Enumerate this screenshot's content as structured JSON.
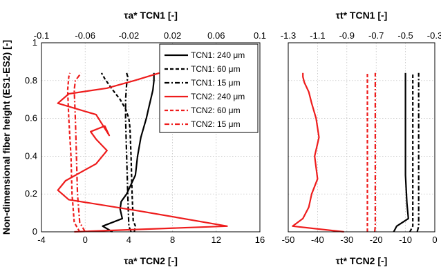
{
  "chart_data": [
    {
      "type": "line",
      "panel": "left",
      "xlabel_top": "τa* TCN1 [-]",
      "xlabel_bottom": "τa* TCN2 [-]",
      "ylabel": "Non-dimensional fiber height (ES1-ES2) [-]",
      "xlim_top": [
        -0.1,
        0.1
      ],
      "xticks_top": [
        "-0.1",
        "-0.06",
        "-0.02",
        "0.02",
        "0.06",
        "0.1"
      ],
      "xlim_bottom": [
        -4,
        16
      ],
      "xticks_bottom": [
        "-4",
        "0",
        "4",
        "8",
        "12",
        "16"
      ],
      "ylim": [
        0,
        1
      ],
      "yticks": [
        "0",
        "0.2",
        "0.4",
        "0.6",
        "0.8",
        "1"
      ],
      "grid": true,
      "legend": {
        "placement": "top-right",
        "entries": [
          {
            "label": "TCN1: 240 μm",
            "color": "#000000",
            "style": "solid"
          },
          {
            "label": "TCN1: 60 μm",
            "color": "#000000",
            "style": "dashed"
          },
          {
            "label": "TCN1: 15 μm",
            "color": "#000000",
            "style": "dashdot"
          },
          {
            "label": "TCN2: 240 μm",
            "color": "#ee1c1c",
            "style": "solid"
          },
          {
            "label": "TCN2: 60 μm",
            "color": "#ee1c1c",
            "style": "dashed"
          },
          {
            "label": "TCN2: 15 μm",
            "color": "#ee1c1c",
            "style": "dashdot"
          }
        ]
      },
      "series": [
        {
          "name": "TCN1: 240 μm",
          "axis": "top",
          "color": "#000000",
          "style": "solid",
          "x": [
            -0.035,
            -0.044,
            -0.026,
            -0.028,
            -0.027,
            -0.022,
            -0.014,
            -0.012,
            -0.009,
            -0.004,
            -0.002,
            0.0,
            0.002,
            0.003,
            0.003
          ],
          "y": [
            0.0,
            0.03,
            0.07,
            0.12,
            0.16,
            0.2,
            0.3,
            0.4,
            0.5,
            0.6,
            0.65,
            0.7,
            0.75,
            0.8,
            0.84
          ]
        },
        {
          "name": "TCN1: 60 μm",
          "axis": "top",
          "color": "#000000",
          "style": "dashed",
          "x": [
            -0.015,
            -0.014,
            -0.016,
            -0.017,
            -0.018,
            -0.019,
            -0.02,
            -0.023,
            -0.028,
            -0.036,
            -0.042,
            -0.045
          ],
          "y": [
            0.0,
            0.03,
            0.06,
            0.2,
            0.4,
            0.55,
            0.6,
            0.65,
            0.7,
            0.76,
            0.81,
            0.84
          ]
        },
        {
          "name": "TCN1: 15 μm",
          "axis": "top",
          "color": "#000000",
          "style": "dashdot",
          "x": [
            -0.018,
            -0.02,
            -0.021,
            -0.022,
            -0.023,
            -0.023,
            -0.022,
            -0.021,
            -0.022
          ],
          "y": [
            0.0,
            0.03,
            0.2,
            0.4,
            0.6,
            0.7,
            0.78,
            0.82,
            0.84
          ]
        },
        {
          "name": "TCN2: 240 μm",
          "axis": "bottom",
          "color": "#ee1c1c",
          "style": "solid",
          "x": [
            -1.0,
            13.0,
            5.0,
            -1.5,
            -2.5,
            -1.8,
            1.0,
            2.0,
            1.0,
            0.5,
            1.8,
            2.2,
            1.0,
            -2.5,
            -1.5,
            2.0,
            4.5,
            6.8
          ],
          "y": [
            0.0,
            0.03,
            0.11,
            0.17,
            0.22,
            0.27,
            0.36,
            0.43,
            0.49,
            0.53,
            0.56,
            0.51,
            0.62,
            0.68,
            0.73,
            0.76,
            0.8,
            0.84
          ]
        },
        {
          "name": "TCN2: 60 μm",
          "axis": "bottom",
          "color": "#ee1c1c",
          "style": "dashed",
          "x": [
            -0.5,
            -1.0,
            -1.2,
            -1.3,
            -1.5,
            -1.6,
            -1.5,
            -1.4
          ],
          "y": [
            0.0,
            0.05,
            0.2,
            0.4,
            0.6,
            0.75,
            0.82,
            0.84
          ]
        },
        {
          "name": "TCN2: 15 μm",
          "axis": "bottom",
          "color": "#ee1c1c",
          "style": "dashdot",
          "x": [
            0.0,
            -0.5,
            -0.7,
            -0.8,
            -0.9,
            -1.0,
            -0.9,
            -0.5,
            -0.4
          ],
          "y": [
            0.0,
            0.05,
            0.2,
            0.4,
            0.6,
            0.75,
            0.8,
            0.83,
            0.84
          ]
        }
      ]
    },
    {
      "type": "line",
      "panel": "right",
      "xlabel_top": "τt* TCN1 [-]",
      "xlabel_bottom": "τt* TCN2 [-]",
      "xlim_top": [
        -1.3,
        -0.3
      ],
      "xticks_top": [
        "-1.3",
        "-1.1",
        "-0.9",
        "-0.7",
        "-0.5",
        "-0.3"
      ],
      "xlim_bottom": [
        -50,
        0
      ],
      "xticks_bottom": [
        "-50",
        "-40",
        "-30",
        "-20",
        "-10",
        "0"
      ],
      "ylim": [
        0,
        1
      ],
      "grid": true,
      "series": [
        {
          "name": "TCN1: 240 μm",
          "axis": "top",
          "color": "#000000",
          "style": "solid",
          "x": [
            -0.58,
            -0.56,
            -0.48,
            -0.49,
            -0.5,
            -0.5,
            -0.5,
            -0.5
          ],
          "y": [
            0.0,
            0.03,
            0.07,
            0.15,
            0.3,
            0.5,
            0.7,
            0.84
          ]
        },
        {
          "name": "TCN1: 60 μm",
          "axis": "top",
          "color": "#000000",
          "style": "dashed",
          "x": [
            -0.47,
            -0.45,
            -0.45,
            -0.45,
            -0.45
          ],
          "y": [
            0.0,
            0.03,
            0.2,
            0.5,
            0.84
          ]
        },
        {
          "name": "TCN1: 15 μm",
          "axis": "top",
          "color": "#000000",
          "style": "dashdot",
          "x": [
            -0.42,
            -0.41,
            -0.41,
            -0.41,
            -0.41
          ],
          "y": [
            0.0,
            0.03,
            0.2,
            0.5,
            0.84
          ]
        },
        {
          "name": "TCN2: 240 μm",
          "axis": "bottom",
          "color": "#ee1c1c",
          "style": "solid",
          "x": [
            -31.0,
            -48.5,
            -45.0,
            -43.0,
            -42.0,
            -40.0,
            -41.0,
            -39.5,
            -40.5,
            -42.0,
            -43.0,
            -44.5,
            -45.0,
            -45.0
          ],
          "y": [
            0.0,
            0.03,
            0.07,
            0.13,
            0.2,
            0.28,
            0.4,
            0.5,
            0.6,
            0.68,
            0.74,
            0.79,
            0.82,
            0.84
          ]
        },
        {
          "name": "TCN2: 60 μm",
          "axis": "bottom",
          "color": "#ee1c1c",
          "style": "dashed",
          "x": [
            -23.0,
            -23.0,
            -23.0,
            -23.0,
            -23.0
          ],
          "y": [
            0.0,
            0.03,
            0.2,
            0.5,
            0.84
          ]
        },
        {
          "name": "TCN2: 15 μm",
          "axis": "bottom",
          "color": "#ee1c1c",
          "style": "dashdot",
          "x": [
            -20.5,
            -20.3,
            -20.3,
            -20.3,
            -20.3
          ],
          "y": [
            0.0,
            0.03,
            0.2,
            0.5,
            0.84
          ]
        }
      ]
    }
  ]
}
